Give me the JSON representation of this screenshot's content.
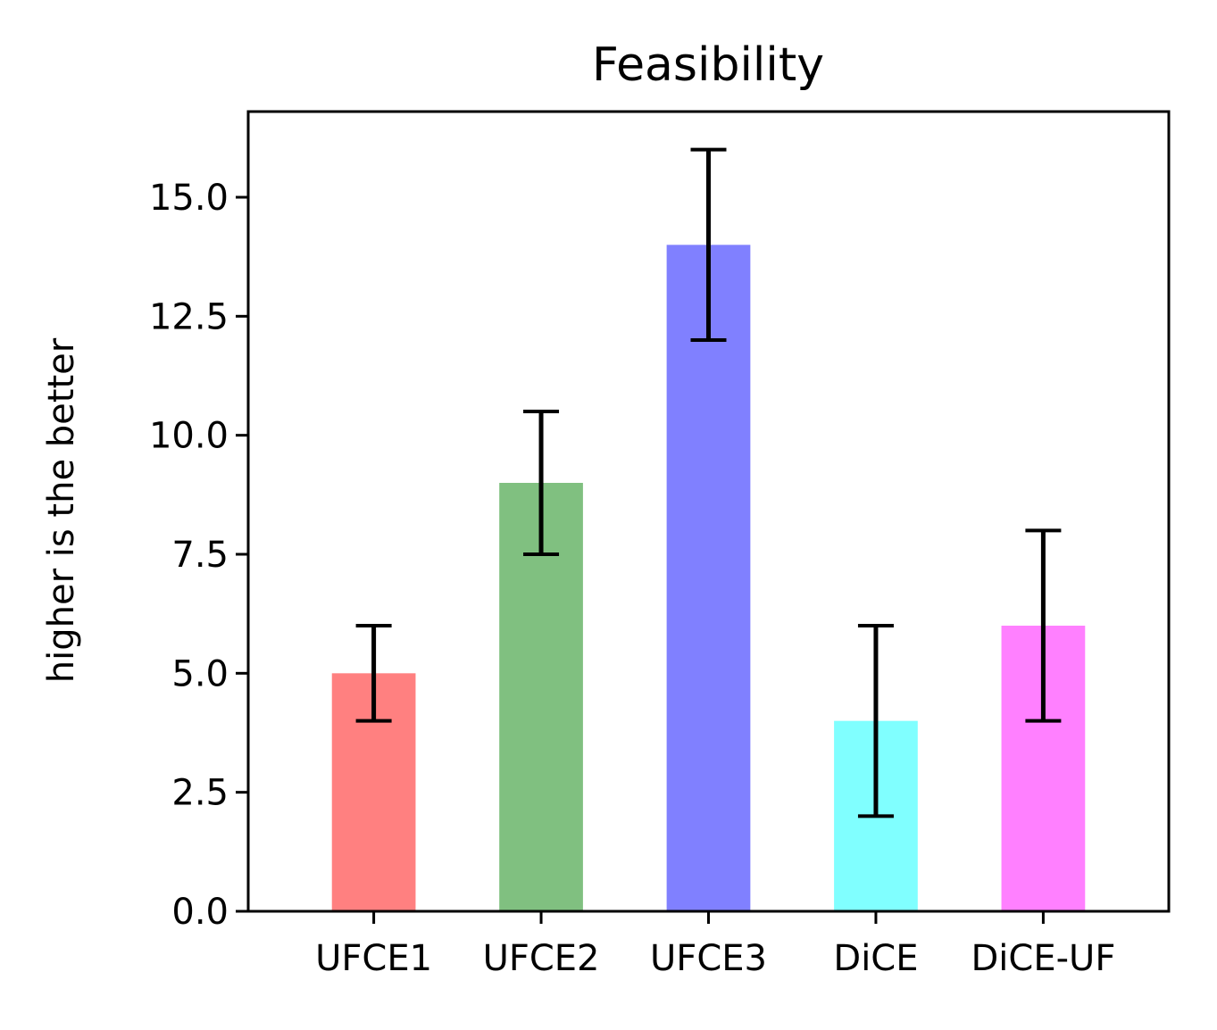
{
  "chart_data": {
    "type": "bar",
    "title": "Feasibility",
    "xlabel": "",
    "ylabel": "higher is the better",
    "categories": [
      "UFCE1",
      "UFCE2",
      "UFCE3",
      "DiCE",
      "DiCE-UF"
    ],
    "values": [
      5.0,
      9.0,
      14.0,
      4.0,
      6.0
    ],
    "error_low": [
      4.0,
      7.5,
      12.0,
      2.0,
      4.0
    ],
    "error_high": [
      6.0,
      10.5,
      16.0,
      6.0,
      8.0
    ],
    "colors": [
      "#ff8080",
      "#80c080",
      "#8080ff",
      "#80ffff",
      "#ff80ff"
    ],
    "error_color": "#000000",
    "ylim": [
      0,
      16.8
    ],
    "yticks": [
      0.0,
      2.5,
      5.0,
      7.5,
      10.0,
      12.5,
      15.0
    ],
    "ytick_labels": [
      "0.0",
      "2.5",
      "5.0",
      "7.5",
      "10.0",
      "12.5",
      "15.0"
    ],
    "grid": false,
    "legend": "none"
  }
}
